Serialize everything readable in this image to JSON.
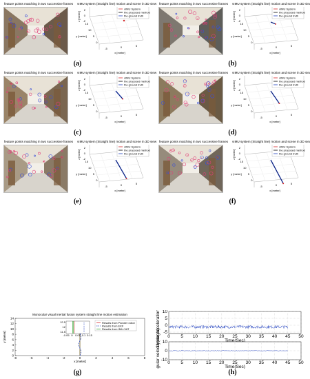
{
  "frame_panels": [
    {
      "caption": "(a)",
      "photo_title": "feature points matching in two successive frames",
      "plot_title": "vIMU system (Straight line) motion and scene in 3D view",
      "progress": 0.0
    },
    {
      "caption": "(b)",
      "photo_title": "feature points matching in two successive frames",
      "plot_title": "vIMU system (Straight line) motion and scene in 3D view",
      "progress": 0.08
    },
    {
      "caption": "(c)",
      "photo_title": "feature points matching in two successive frames",
      "plot_title": "vIMU system (Straight line) motion and scene in 3D view",
      "progress": 0.32
    },
    {
      "caption": "(d)",
      "photo_title": "feature points matching in two successive frames",
      "plot_title": "vIMU system (Straight line) motion and scene in 3D view",
      "progress": 0.5
    },
    {
      "caption": "(e)",
      "photo_title": "feature points matching in two successive frames",
      "plot_title": "vIMU system (Straight line) motion and scene in 3D view",
      "progress": 0.75
    },
    {
      "caption": "(f)",
      "photo_title": "feature points matching in two successive frames",
      "plot_title": "vIMU system (Straight line) motion and scene in 3D view",
      "progress": 0.95
    }
  ],
  "plot3d": {
    "legend": [
      "vIMU System",
      "the proposed method",
      "the ground truth"
    ],
    "legend_colors": [
      "#d62728",
      "#000000",
      "#1f3fbf"
    ],
    "zlabel": "z [meter]",
    "ylabel": "y [meter]",
    "xlabel": "x [meter]",
    "z_ticks": [
      "2",
      "0",
      "-2"
    ],
    "y_ticks": [
      "15",
      "10",
      "5",
      "0"
    ],
    "x_ticks": [
      "-5",
      "0",
      "5"
    ]
  },
  "panel_g": {
    "caption": "(g)",
    "title": "Monocular visual inertial fusion system straight line motion estimation",
    "legend": [
      "Results from Pioneer robot",
      "Results from EKF",
      "Results from IMU-VAT"
    ],
    "legend_colors": [
      "#d62728",
      "#1f3fbf",
      "#2ca02c"
    ],
    "ylabel": "y [meter]",
    "xlabel": "x [meter]",
    "y_ticks": [
      "14",
      "12",
      "10",
      "8",
      "6",
      "4",
      "2",
      "0"
    ],
    "x_ticks": [
      "-8",
      "-6",
      "-4",
      "-2",
      "0",
      "2",
      "4",
      "6",
      "8"
    ],
    "inset_y_ticks": [
      "12.5",
      "12",
      "11.5"
    ],
    "inset_x_ticks": [
      "-0.05",
      "0",
      "0.05",
      "0.1",
      "0.15"
    ]
  },
  "panel_h": {
    "caption": "(h)",
    "top": {
      "ylabel": "Linear acceleration(m/s²)",
      "xlabel": "Time(Sec)",
      "y_ticks": [
        "10",
        "5",
        "0",
        "-5"
      ],
      "ylim": [
        -6,
        10
      ],
      "mean": -1.2,
      "noise": 1.1
    },
    "bottom": {
      "ylabel": "angular velocity(deg/s)",
      "xlabel": "Time(Sec)",
      "y_ticks": [
        "10",
        "0",
        "-10"
      ],
      "ylim": [
        -10,
        10
      ],
      "mean": 0.0,
      "noise": 0.3
    },
    "x_ticks": [
      "0",
      "5",
      "10",
      "15",
      "20",
      "25",
      "30",
      "35",
      "40",
      "45",
      "50"
    ],
    "xlim": [
      0,
      50
    ],
    "duration": 45
  }
}
